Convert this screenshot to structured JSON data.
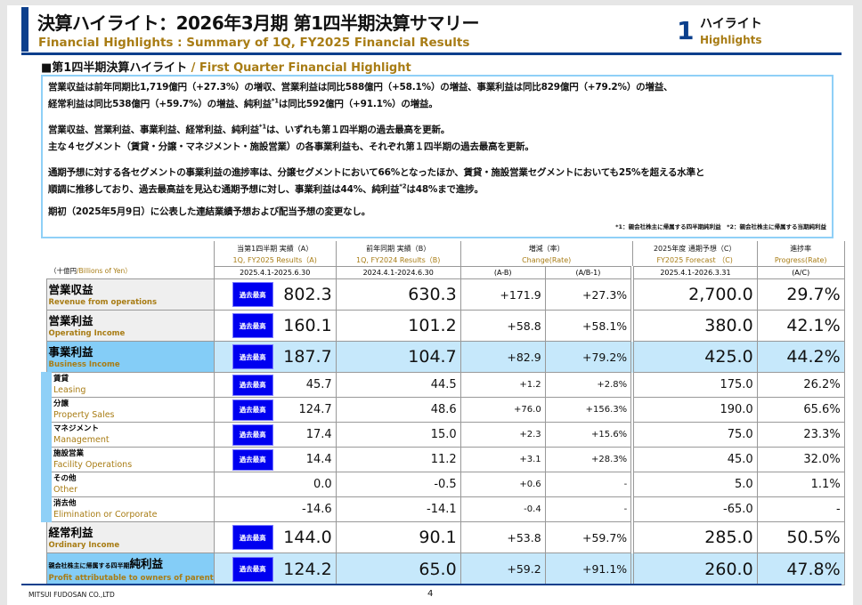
{
  "header": {
    "title": "決算ハイライト：2026年3月期 第1四半期決算サマリー",
    "subtitle": "Financial Highlights : Summary of 1Q, FY2025 Financial Results",
    "section_number": "1",
    "section_jp": "ハイライト",
    "section_en": "Highlights"
  },
  "section": {
    "jp": "■第1四半期決算ハイライト",
    "en": " / First Quarter Financial Highlight"
  },
  "summary": {
    "p1a": "営業収益は前年同期比1,719億円（+27.3%）の増収、営業利益は同比588億円（+58.1%）の増益、事業利益は同比829億円（+79.2%）の増益、",
    "p1b_pre": "経常利益は同比538億円（+59.7%）の増益、純利益",
    "p1b_sup": "*1",
    "p1b_post": "は同比592億円（+91.1%）の増益。",
    "p2a_pre": "営業収益、営業利益、事業利益、経常利益、純利益",
    "p2a_sup": "*1",
    "p2a_post": "は、いずれも第１四半期の過去最高を更新。",
    "p2b": "主な４セグメント（賃貸・分譲・マネジメント・施設営業）の各事業利益も、それぞれ第１四半期の過去最高を更新。",
    "p3a": "通期予想に対する各セグメントの事業利益の進捗率は、分譲セグメントにおいて66%となったほか、賃貸・施設営業セグメントにおいても25%を超える水準と",
    "p3b_pre": "順調に推移しており、過去最高益を見込む通期予想に対し、事業利益は44%、純利益",
    "p3b_sup": "*2",
    "p3b_post": "は48%まで進捗。",
    "p4": "期初（2025年5月9日）に公表した連結業績予想および配当予想の変更なし。",
    "notes": "*1：親会社株主に帰属する四半期純利益　*2：親会社株主に帰属する当期純利益"
  },
  "table": {
    "unit_jp": "（十億円",
    "unit_en": "/Billions of Yen）",
    "cols": [
      {
        "jp": "当第1四半期 実績（A）",
        "en": "1Q, FY2025  Results（A)",
        "period": "2025.4.1-2025.6.30"
      },
      {
        "jp": "前年同期 実績（B）",
        "en": "1Q, FY2024  Results（B)",
        "period": "2024.4.1-2024.6.30"
      },
      {
        "jp": "増減（率）",
        "en": "Change(Rate)",
        "sub1": "(A-B)",
        "sub2": "(A/B-1)"
      },
      {
        "jp": "2025年度 通期予想（C）",
        "en": "FY2025 Forecast （C)",
        "period": "2025.4.1-2026.3.31"
      },
      {
        "jp": "進捗率",
        "en": "Progress(Rate)",
        "period": "(A/C)"
      }
    ],
    "badge": "過去最高",
    "rows": [
      {
        "type": "big",
        "jp": "営業収益",
        "en": "Revenue from operations",
        "badge": true,
        "a": "802.3",
        "b": "630.3",
        "diff": "+171.9",
        "rate": "+27.3%",
        "c": "2,700.0",
        "prog": "29.7%"
      },
      {
        "type": "big",
        "jp": "営業利益",
        "en": "Operating Income",
        "badge": true,
        "a": "160.1",
        "b": "101.2",
        "diff": "+58.8",
        "rate": "+58.1%",
        "c": "380.0",
        "prog": "42.1%"
      },
      {
        "type": "big",
        "hl": true,
        "jp": "事業利益",
        "en": "Business Income",
        "badge": true,
        "a": "187.7",
        "b": "104.7",
        "diff": "+82.9",
        "rate": "+79.2%",
        "c": "425.0",
        "prog": "44.2%"
      },
      {
        "type": "seg",
        "jp": "賃貸",
        "en": "Leasing",
        "badge": true,
        "a": "45.7",
        "b": "44.5",
        "diff": "+1.2",
        "rate": "+2.8%",
        "c": "175.0",
        "prog": "26.2%"
      },
      {
        "type": "seg",
        "jp": "分譲",
        "en": "Property Sales",
        "badge": true,
        "a": "124.7",
        "b": "48.6",
        "diff": "+76.0",
        "rate": "+156.3%",
        "c": "190.0",
        "prog": "65.6%"
      },
      {
        "type": "seg",
        "jp": "マネジメント",
        "en": "Management",
        "badge": true,
        "a": "17.4",
        "b": "15.0",
        "diff": "+2.3",
        "rate": "+15.6%",
        "c": "75.0",
        "prog": "23.3%"
      },
      {
        "type": "seg",
        "jp": "施設営業",
        "en": "Facility Operations",
        "badge": true,
        "a": "14.4",
        "b": "11.2",
        "diff": "+3.1",
        "rate": "+28.3%",
        "c": "45.0",
        "prog": "32.0%"
      },
      {
        "type": "seg",
        "jp": "その他",
        "en": "Other",
        "badge": false,
        "a": "0.0",
        "b": "-0.5",
        "diff": "+0.6",
        "rate": "-",
        "c": "5.0",
        "prog": "1.1%"
      },
      {
        "type": "seg",
        "jp": "消去他",
        "en": "Elimination or Corporate",
        "badge": false,
        "a": "-14.6",
        "b": "-14.1",
        "diff": "-0.4",
        "rate": "-",
        "c": "-65.0",
        "prog": "-"
      },
      {
        "type": "big",
        "jp": "経常利益",
        "en": "Ordinary Income",
        "badge": true,
        "a": "144.0",
        "b": "90.1",
        "diff": "+53.8",
        "rate": "+59.7%",
        "c": "285.0",
        "prog": "50.5%"
      },
      {
        "type": "big",
        "hl": true,
        "jp_small": "親会社株主に帰属する四半期",
        "jp": "純利益",
        "en": "Profit attributable to owners of parent",
        "badge": true,
        "a": "124.2",
        "b": "65.0",
        "diff": "+59.2",
        "rate": "+91.1%",
        "c": "260.0",
        "prog": "47.8%"
      }
    ]
  },
  "footer": {
    "company": "MITSUI FUDOSAN CO.,LTD",
    "page": "4"
  }
}
